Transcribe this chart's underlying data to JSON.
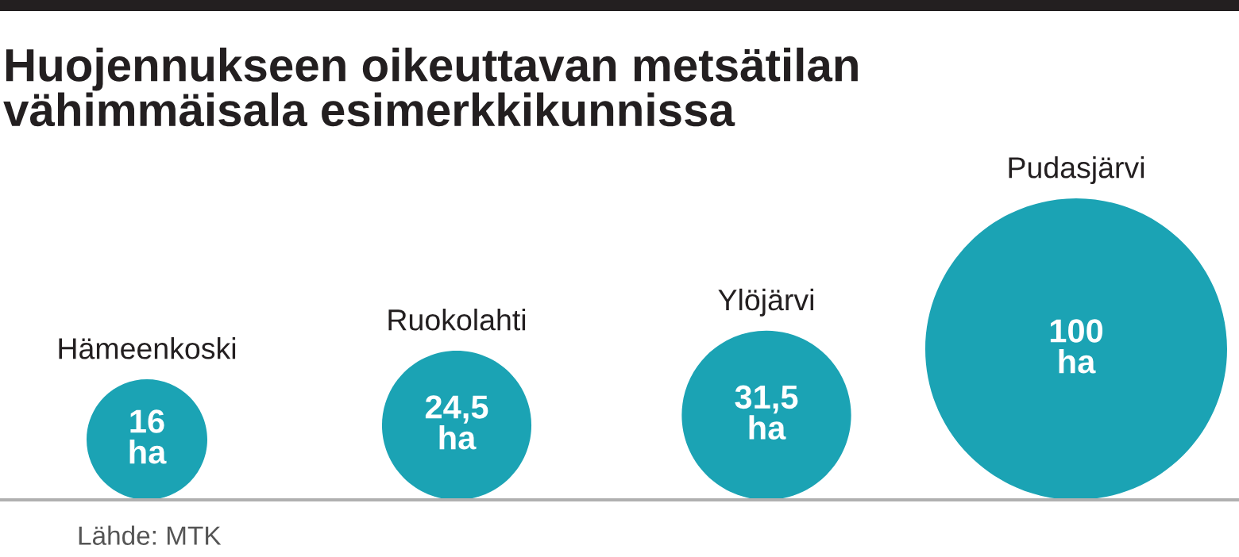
{
  "chart_data": {
    "type": "other",
    "title": "Huojennukseen oikeuttavan metsätilan\nvähimmäisala esimerkkikunnissa",
    "categories": [
      "Hämeenkoski",
      "Ruokolahti",
      "Ylöjärvi",
      "Pudasjärvi"
    ],
    "values": [
      16,
      24.5,
      31.5,
      100
    ],
    "value_labels": [
      "16\nha",
      "24,5\nha",
      "31,5\nha",
      "100\nha"
    ],
    "color": "#1ba3b4",
    "annotations": [
      "Lähde: MTK"
    ]
  }
}
